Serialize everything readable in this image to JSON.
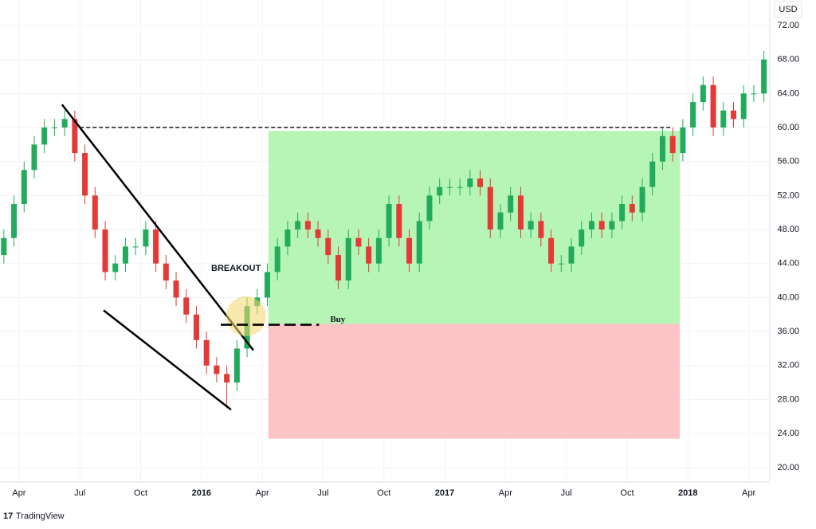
{
  "chart_data": {
    "type": "candlestick",
    "currency": "USD",
    "brand": "TradingView",
    "up_color": "#22ab5b",
    "down_color": "#e53935",
    "x": [
      2.25,
      2.75,
      3.25,
      3.75,
      4.25,
      4.75,
      5.25,
      5.75,
      6.25,
      6.75,
      7.25,
      7.75,
      8.25,
      8.75,
      9.25,
      9.75,
      10.25,
      10.75,
      11.25,
      11.75,
      12.25,
      12.75,
      13.25,
      13.75,
      14.25,
      14.75,
      15.25,
      15.75,
      16.25,
      16.75,
      17.25,
      17.75,
      18.25,
      18.75,
      19.25,
      19.75,
      20.25,
      20.75,
      21.25,
      21.75,
      22.25,
      22.75,
      23.25,
      23.75,
      24.25,
      24.75,
      25.25,
      25.75,
      26.25,
      26.75,
      27.25,
      27.75,
      28.25,
      28.75,
      29.25,
      29.75,
      30.25,
      30.75,
      31.25,
      31.75,
      32.25,
      32.75,
      33.25,
      33.75,
      34.25,
      34.75,
      35.25,
      35.75,
      36.25,
      36.75,
      37.25,
      37.75,
      38.25,
      38.75,
      39.25,
      39.75
    ],
    "open": [
      45,
      47,
      51,
      55,
      58,
      60,
      60,
      61,
      57,
      52,
      48,
      43,
      44,
      46,
      46,
      48,
      44,
      42,
      40,
      38,
      35,
      32,
      31,
      30,
      34,
      39,
      40,
      43,
      46,
      48,
      49,
      48,
      47,
      45,
      42,
      47,
      46,
      44,
      47,
      51,
      47,
      44,
      49,
      52,
      53,
      53,
      53,
      54,
      53,
      48,
      50,
      52,
      48,
      49,
      47,
      44,
      44,
      46,
      48,
      49,
      48,
      49,
      51,
      50,
      53,
      56,
      59,
      57,
      60,
      63,
      65,
      60,
      62,
      61,
      64,
      64
    ],
    "high": [
      48,
      52,
      56,
      59,
      61,
      61,
      62,
      62,
      58,
      53,
      49,
      45,
      47,
      47,
      49,
      49,
      45,
      43,
      41,
      39,
      36,
      33,
      32,
      35,
      40,
      41,
      44,
      47,
      49,
      50,
      50,
      49,
      48,
      46,
      48,
      48,
      47,
      48,
      52,
      52,
      48,
      50,
      53,
      54,
      54,
      54,
      55,
      55,
      54,
      51,
      53,
      53,
      50,
      50,
      48,
      45,
      47,
      49,
      50,
      50,
      50,
      52,
      52,
      54,
      57,
      60,
      60,
      61,
      64,
      66,
      66,
      63,
      63,
      65,
      65,
      69
    ],
    "low": [
      44,
      46,
      50,
      54,
      57,
      59,
      59,
      56,
      51,
      47,
      42,
      42,
      43,
      45,
      45,
      43,
      41,
      39,
      37,
      34,
      31,
      30,
      27,
      29,
      33,
      38,
      39,
      42,
      45,
      47,
      47,
      46,
      44,
      41,
      41,
      45,
      43,
      43,
      46,
      46,
      43,
      43,
      48,
      51,
      52,
      52,
      52,
      52,
      47,
      47,
      49,
      47,
      47,
      46,
      43,
      43,
      43,
      45,
      47,
      47,
      47,
      48,
      49,
      49,
      52,
      55,
      56,
      56,
      59,
      62,
      59,
      59,
      60,
      60,
      63,
      63
    ],
    "close": [
      47,
      51,
      55,
      58,
      60,
      60,
      61,
      57,
      52,
      48,
      43,
      44,
      46,
      46,
      48,
      44,
      42,
      40,
      38,
      35,
      32,
      31,
      30,
      34,
      39,
      40,
      43,
      46,
      48,
      49,
      48,
      47,
      45,
      42,
      47,
      46,
      44,
      47,
      51,
      47,
      44,
      49,
      52,
      53,
      53,
      53,
      54,
      53,
      48,
      50,
      52,
      48,
      49,
      47,
      44,
      44,
      46,
      48,
      49,
      48,
      49,
      51,
      50,
      53,
      56,
      59,
      57,
      60,
      63,
      65,
      60,
      62,
      61,
      64,
      64,
      68
    ],
    "xlim": [
      2.06,
      40.0
    ],
    "ylim": [
      18.3,
      75.0
    ],
    "xticks": [
      {
        "value": 3,
        "label": "Apr"
      },
      {
        "value": 6,
        "label": "Jul"
      },
      {
        "value": 9,
        "label": "Oct"
      },
      {
        "value": 12,
        "label": "2016"
      },
      {
        "value": 15,
        "label": "Apr"
      },
      {
        "value": 18,
        "label": "Jul"
      },
      {
        "value": 21,
        "label": "Oct"
      },
      {
        "value": 24,
        "label": "2017"
      },
      {
        "value": 27,
        "label": "Apr"
      },
      {
        "value": 30,
        "label": "Jul"
      },
      {
        "value": 33,
        "label": "Oct"
      },
      {
        "value": 36,
        "label": "2018"
      },
      {
        "value": 39,
        "label": "Apr"
      }
    ],
    "yticks": [
      {
        "value": 20,
        "label": "20.00"
      },
      {
        "value": 24,
        "label": "24.00"
      },
      {
        "value": 28,
        "label": "28.00"
      },
      {
        "value": 32,
        "label": "32.00"
      },
      {
        "value": 36,
        "label": "36.00"
      },
      {
        "value": 40,
        "label": "40.00"
      },
      {
        "value": 44,
        "label": "44.00"
      },
      {
        "value": 48,
        "label": "48.00"
      },
      {
        "value": 52,
        "label": "52.00"
      },
      {
        "value": 56,
        "label": "56.00"
      },
      {
        "value": 60,
        "label": "60.00"
      },
      {
        "value": 64,
        "label": "64.00"
      },
      {
        "value": 68,
        "label": "68.00"
      },
      {
        "value": 72,
        "label": "72.00"
      }
    ],
    "target_zone": {
      "x": [
        15.3,
        35.6
      ],
      "y": [
        36.9,
        59.6
      ],
      "color": "#b7f5b7"
    },
    "stop_zone": {
      "x": [
        15.3,
        35.6
      ],
      "y": [
        23.4,
        36.9
      ],
      "color": "#fcc4c4"
    },
    "resistance": {
      "x": [
        6.0,
        35.2
      ],
      "y": 60
    },
    "entry": {
      "x": [
        12.95,
        17.8
      ],
      "y": 36.8,
      "label": "Buy",
      "color": "#22ab5b"
    },
    "trendlines": [
      {
        "x": [
          5.12,
          14.56
        ],
        "y": [
          62.7,
          33.8
        ]
      },
      {
        "x": [
          7.17,
          13.46
        ],
        "y": [
          38.5,
          26.8
        ]
      }
    ],
    "breakout": {
      "label": "BREAKOUT",
      "x": 14.2,
      "y": 37.8
    }
  }
}
